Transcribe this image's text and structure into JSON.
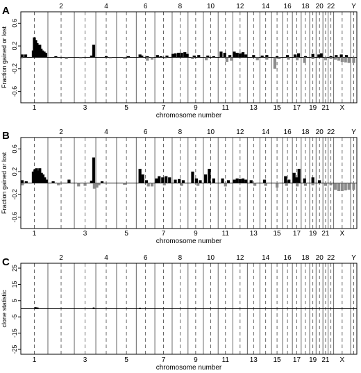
{
  "chart_data": [
    {
      "type": "bar",
      "panel_label": "A",
      "ylabel": "Fraction gained or lost",
      "xlabel": "chromosome number",
      "ylim": [
        -0.8,
        0.8
      ],
      "yticks": [
        {
          "value": 0.6,
          "label": "0.6"
        },
        {
          "value": 0.2,
          "label": "0.2"
        },
        {
          "value": -0.2,
          "label": "-0.2"
        },
        {
          "value": -0.6,
          "label": "-0.6"
        }
      ],
      "chromosomes": [
        "1",
        "2",
        "3",
        "4",
        "5",
        "6",
        "7",
        "8",
        "9",
        "10",
        "11",
        "12",
        "13",
        "14",
        "15",
        "16",
        "17",
        "18",
        "19",
        "20",
        "21",
        "22",
        "X",
        "Y"
      ],
      "gain_color": "#000000",
      "loss_color": "#8c8c8c",
      "gains": [
        {
          "chrom": 1,
          "pos": 0.05,
          "value": 0.05
        },
        {
          "chrom": 1,
          "pos": 0.18,
          "value": 0.05
        },
        {
          "chrom": 1,
          "pos": 0.46,
          "value": 0.12
        },
        {
          "chrom": 1,
          "pos": 0.5,
          "value": 0.35
        },
        {
          "chrom": 1,
          "pos": 0.55,
          "value": 0.3
        },
        {
          "chrom": 1,
          "pos": 0.6,
          "value": 0.25
        },
        {
          "chrom": 1,
          "pos": 0.65,
          "value": 0.18
        },
        {
          "chrom": 1,
          "pos": 0.7,
          "value": 0.22
        },
        {
          "chrom": 1,
          "pos": 0.75,
          "value": 0.15
        },
        {
          "chrom": 1,
          "pos": 0.8,
          "value": 0.12
        },
        {
          "chrom": 1,
          "pos": 0.86,
          "value": 0.1
        },
        {
          "chrom": 1,
          "pos": 0.92,
          "value": 0.08
        },
        {
          "chrom": 2,
          "pos": 0.3,
          "value": 0.02
        },
        {
          "chrom": 3,
          "pos": 0.8,
          "value": 0.03
        },
        {
          "chrom": 3,
          "pos": 0.9,
          "value": 0.22
        },
        {
          "chrom": 4,
          "pos": 0.5,
          "value": 0.02
        },
        {
          "chrom": 5,
          "pos": 0.6,
          "value": 0.02
        },
        {
          "chrom": 6,
          "pos": 0.2,
          "value": 0.05
        },
        {
          "chrom": 6,
          "pos": 0.3,
          "value": 0.03
        },
        {
          "chrom": 6,
          "pos": 0.6,
          "value": 0.02
        },
        {
          "chrom": 7,
          "pos": 0.15,
          "value": 0.04
        },
        {
          "chrom": 7,
          "pos": 0.35,
          "value": 0.02
        },
        {
          "chrom": 7,
          "pos": 0.7,
          "value": 0.03
        },
        {
          "chrom": 8,
          "pos": 0.05,
          "value": 0.06
        },
        {
          "chrom": 8,
          "pos": 0.2,
          "value": 0.07
        },
        {
          "chrom": 8,
          "pos": 0.4,
          "value": 0.08
        },
        {
          "chrom": 8,
          "pos": 0.6,
          "value": 0.08
        },
        {
          "chrom": 8,
          "pos": 0.8,
          "value": 0.09
        },
        {
          "chrom": 8,
          "pos": 0.95,
          "value": 0.06
        },
        {
          "chrom": 9,
          "pos": 0.4,
          "value": 0.03
        },
        {
          "chrom": 9,
          "pos": 0.7,
          "value": 0.04
        },
        {
          "chrom": 10,
          "pos": 0.3,
          "value": 0.03
        },
        {
          "chrom": 10,
          "pos": 0.7,
          "value": 0.02
        },
        {
          "chrom": 11,
          "pos": 0.2,
          "value": 0.1
        },
        {
          "chrom": 11,
          "pos": 0.45,
          "value": 0.08
        },
        {
          "chrom": 11,
          "pos": 0.8,
          "value": 0.04
        },
        {
          "chrom": 12,
          "pos": 0.1,
          "value": 0.1
        },
        {
          "chrom": 12,
          "pos": 0.3,
          "value": 0.08
        },
        {
          "chrom": 12,
          "pos": 0.5,
          "value": 0.07
        },
        {
          "chrom": 12,
          "pos": 0.7,
          "value": 0.09
        },
        {
          "chrom": 12,
          "pos": 0.9,
          "value": 0.05
        },
        {
          "chrom": 13,
          "pos": 0.5,
          "value": 0.04
        },
        {
          "chrom": 14,
          "pos": 0.2,
          "value": 0.03
        },
        {
          "chrom": 14,
          "pos": 0.6,
          "value": 0.04
        },
        {
          "chrom": 15,
          "pos": 0.5,
          "value": 0.02
        },
        {
          "chrom": 16,
          "pos": 0.5,
          "value": 0.04
        },
        {
          "chrom": 17,
          "pos": 0.3,
          "value": 0.05
        },
        {
          "chrom": 17,
          "pos": 0.7,
          "value": 0.07
        },
        {
          "chrom": 18,
          "pos": 0.5,
          "value": 0.02
        },
        {
          "chrom": 19,
          "pos": 0.5,
          "value": 0.06
        },
        {
          "chrom": 20,
          "pos": 0.4,
          "value": 0.05
        },
        {
          "chrom": 20,
          "pos": 0.75,
          "value": 0.07
        },
        {
          "chrom": 22,
          "pos": 0.5,
          "value": 0.02
        },
        {
          "chrom": 23,
          "pos": 0.15,
          "value": 0.04
        },
        {
          "chrom": 23,
          "pos": 0.45,
          "value": 0.05
        },
        {
          "chrom": 23,
          "pos": 0.75,
          "value": 0.04
        }
      ],
      "losses": [
        {
          "chrom": 1,
          "pos": 0.03,
          "value": -0.02
        },
        {
          "chrom": 2,
          "pos": 0.7,
          "value": -0.03
        },
        {
          "chrom": 3,
          "pos": 0.3,
          "value": -0.02
        },
        {
          "chrom": 4,
          "pos": 0.7,
          "value": -0.02
        },
        {
          "chrom": 5,
          "pos": 0.4,
          "value": -0.03
        },
        {
          "chrom": 6,
          "pos": 0.6,
          "value": -0.06
        },
        {
          "chrom": 6,
          "pos": 0.85,
          "value": -0.04
        },
        {
          "chrom": 7,
          "pos": 0.6,
          "value": -0.02
        },
        {
          "chrom": 9,
          "pos": 0.3,
          "value": -0.03
        },
        {
          "chrom": 10,
          "pos": 0.2,
          "value": -0.05
        },
        {
          "chrom": 11,
          "pos": 0.6,
          "value": -0.08
        },
        {
          "chrom": 11,
          "pos": 0.9,
          "value": -0.06
        },
        {
          "chrom": 13,
          "pos": 0.8,
          "value": -0.05
        },
        {
          "chrom": 14,
          "pos": 0.6,
          "value": -0.04
        },
        {
          "chrom": 15,
          "pos": 0.3,
          "value": -0.2
        },
        {
          "chrom": 15,
          "pos": 0.7,
          "value": -0.03
        },
        {
          "chrom": 16,
          "pos": 0.6,
          "value": -0.04
        },
        {
          "chrom": 17,
          "pos": 0.55,
          "value": -0.05
        },
        {
          "chrom": 18,
          "pos": 0.4,
          "value": -0.1
        },
        {
          "chrom": 19,
          "pos": 0.5,
          "value": -0.03
        },
        {
          "chrom": 21,
          "pos": 0.5,
          "value": -0.05
        },
        {
          "chrom": 22,
          "pos": 0.5,
          "value": -0.03
        },
        {
          "chrom": 23,
          "pos": 0.1,
          "value": -0.04
        },
        {
          "chrom": 23,
          "pos": 0.3,
          "value": -0.06
        },
        {
          "chrom": 23,
          "pos": 0.5,
          "value": -0.08
        },
        {
          "chrom": 23,
          "pos": 0.7,
          "value": -0.09
        },
        {
          "chrom": 23,
          "pos": 0.9,
          "value": -0.1
        },
        {
          "chrom": 24,
          "pos": 0.5,
          "value": -0.1
        }
      ]
    },
    {
      "type": "bar",
      "panel_label": "B",
      "ylabel": "Fraction gained or lost",
      "xlabel": "chromosome number",
      "ylim": [
        -0.8,
        0.8
      ],
      "yticks": [
        {
          "value": 0.6,
          "label": "0.6"
        },
        {
          "value": 0.2,
          "label": "0.2"
        },
        {
          "value": -0.2,
          "label": "-0.2"
        },
        {
          "value": -0.6,
          "label": "-0.6"
        }
      ],
      "chromosomes": [
        "1",
        "2",
        "3",
        "4",
        "5",
        "6",
        "7",
        "8",
        "9",
        "10",
        "11",
        "12",
        "13",
        "14",
        "15",
        "16",
        "17",
        "18",
        "19",
        "20",
        "21",
        "22",
        "X",
        "Y"
      ],
      "gain_color": "#000000",
      "loss_color": "#8c8c8c",
      "gains": [
        {
          "chrom": 1,
          "pos": 0.05,
          "value": 0.05
        },
        {
          "chrom": 1,
          "pos": 0.2,
          "value": 0.03
        },
        {
          "chrom": 1,
          "pos": 0.46,
          "value": 0.2
        },
        {
          "chrom": 1,
          "pos": 0.52,
          "value": 0.24
        },
        {
          "chrom": 1,
          "pos": 0.58,
          "value": 0.26
        },
        {
          "chrom": 1,
          "pos": 0.64,
          "value": 0.22
        },
        {
          "chrom": 1,
          "pos": 0.7,
          "value": 0.26
        },
        {
          "chrom": 1,
          "pos": 0.76,
          "value": 0.18
        },
        {
          "chrom": 1,
          "pos": 0.82,
          "value": 0.15
        },
        {
          "chrom": 1,
          "pos": 0.88,
          "value": 0.1
        },
        {
          "chrom": 1,
          "pos": 0.94,
          "value": 0.06
        },
        {
          "chrom": 2,
          "pos": 0.2,
          "value": 0.03
        },
        {
          "chrom": 2,
          "pos": 0.8,
          "value": 0.06
        },
        {
          "chrom": 3,
          "pos": 0.8,
          "value": 0.04
        },
        {
          "chrom": 3,
          "pos": 0.9,
          "value": 0.45
        },
        {
          "chrom": 4,
          "pos": 0.3,
          "value": 0.03
        },
        {
          "chrom": 6,
          "pos": 0.2,
          "value": 0.25
        },
        {
          "chrom": 6,
          "pos": 0.35,
          "value": 0.15
        },
        {
          "chrom": 6,
          "pos": 0.55,
          "value": 0.05
        },
        {
          "chrom": 7,
          "pos": 0.1,
          "value": 0.08
        },
        {
          "chrom": 7,
          "pos": 0.25,
          "value": 0.12
        },
        {
          "chrom": 7,
          "pos": 0.45,
          "value": 0.1
        },
        {
          "chrom": 7,
          "pos": 0.65,
          "value": 0.12
        },
        {
          "chrom": 7,
          "pos": 0.85,
          "value": 0.1
        },
        {
          "chrom": 8,
          "pos": 0.2,
          "value": 0.06
        },
        {
          "chrom": 8,
          "pos": 0.45,
          "value": 0.07
        },
        {
          "chrom": 8,
          "pos": 0.7,
          "value": 0.05
        },
        {
          "chrom": 9,
          "pos": 0.3,
          "value": 0.2
        },
        {
          "chrom": 9,
          "pos": 0.55,
          "value": 0.08
        },
        {
          "chrom": 9,
          "pos": 0.8,
          "value": 0.05
        },
        {
          "chrom": 10,
          "pos": 0.15,
          "value": 0.15
        },
        {
          "chrom": 10,
          "pos": 0.4,
          "value": 0.25
        },
        {
          "chrom": 10,
          "pos": 0.7,
          "value": 0.08
        },
        {
          "chrom": 11,
          "pos": 0.3,
          "value": 0.08
        },
        {
          "chrom": 11,
          "pos": 0.7,
          "value": 0.05
        },
        {
          "chrom": 12,
          "pos": 0.1,
          "value": 0.06
        },
        {
          "chrom": 12,
          "pos": 0.3,
          "value": 0.08
        },
        {
          "chrom": 12,
          "pos": 0.5,
          "value": 0.07
        },
        {
          "chrom": 12,
          "pos": 0.7,
          "value": 0.08
        },
        {
          "chrom": 12,
          "pos": 0.9,
          "value": 0.06
        },
        {
          "chrom": 13,
          "pos": 0.3,
          "value": 0.05
        },
        {
          "chrom": 14,
          "pos": 0.4,
          "value": 0.06
        },
        {
          "chrom": 16,
          "pos": 0.3,
          "value": 0.12
        },
        {
          "chrom": 16,
          "pos": 0.65,
          "value": 0.06
        },
        {
          "chrom": 17,
          "pos": 0.2,
          "value": 0.18
        },
        {
          "chrom": 17,
          "pos": 0.5,
          "value": 0.1
        },
        {
          "chrom": 17,
          "pos": 0.75,
          "value": 0.25
        },
        {
          "chrom": 18,
          "pos": 0.4,
          "value": 0.08
        },
        {
          "chrom": 19,
          "pos": 0.5,
          "value": 0.1
        },
        {
          "chrom": 20,
          "pos": 0.5,
          "value": 0.05
        }
      ],
      "losses": [
        {
          "chrom": 1,
          "pos": 0.06,
          "value": -0.04
        },
        {
          "chrom": 2,
          "pos": 0.4,
          "value": -0.04
        },
        {
          "chrom": 3,
          "pos": 0.2,
          "value": -0.06
        },
        {
          "chrom": 3,
          "pos": 0.5,
          "value": -0.05
        },
        {
          "chrom": 3,
          "pos": 0.93,
          "value": -0.1
        },
        {
          "chrom": 4,
          "pos": 0.05,
          "value": -0.08
        },
        {
          "chrom": 4,
          "pos": 0.15,
          "value": -0.04
        },
        {
          "chrom": 5,
          "pos": 0.4,
          "value": -0.03
        },
        {
          "chrom": 6,
          "pos": 0.65,
          "value": -0.06
        },
        {
          "chrom": 6,
          "pos": 0.85,
          "value": -0.06
        },
        {
          "chrom": 7,
          "pos": 0.55,
          "value": -0.04
        },
        {
          "chrom": 8,
          "pos": 0.6,
          "value": -0.05
        },
        {
          "chrom": 9,
          "pos": 0.65,
          "value": -0.05
        },
        {
          "chrom": 11,
          "pos": 0.5,
          "value": -0.06
        },
        {
          "chrom": 13,
          "pos": 0.6,
          "value": -0.05
        },
        {
          "chrom": 14,
          "pos": 0.5,
          "value": -0.05
        },
        {
          "chrom": 15,
          "pos": 0.5,
          "value": -0.08
        },
        {
          "chrom": 16,
          "pos": 0.4,
          "value": -0.05
        },
        {
          "chrom": 17,
          "pos": 0.55,
          "value": -0.06
        },
        {
          "chrom": 18,
          "pos": 0.5,
          "value": -0.05
        },
        {
          "chrom": 19,
          "pos": 0.5,
          "value": -0.04
        },
        {
          "chrom": 21,
          "pos": 0.5,
          "value": -0.05
        },
        {
          "chrom": 22,
          "pos": 0.5,
          "value": -0.04
        },
        {
          "chrom": 23,
          "pos": 0.1,
          "value": -0.12
        },
        {
          "chrom": 23,
          "pos": 0.3,
          "value": -0.14
        },
        {
          "chrom": 23,
          "pos": 0.5,
          "value": -0.14
        },
        {
          "chrom": 23,
          "pos": 0.7,
          "value": -0.13
        },
        {
          "chrom": 23,
          "pos": 0.9,
          "value": -0.12
        },
        {
          "chrom": 24,
          "pos": 0.5,
          "value": -0.12
        }
      ]
    },
    {
      "type": "bar",
      "panel_label": "C",
      "ylabel": "clone statistic",
      "xlabel": "chromosome number",
      "ylim": [
        -28,
        28
      ],
      "yticks": [
        {
          "value": 25,
          "label": "25"
        },
        {
          "value": 15,
          "label": "15"
        },
        {
          "value": 5,
          "label": "5"
        },
        {
          "value": -5,
          "label": "-5"
        },
        {
          "value": -15,
          "label": "-15"
        },
        {
          "value": -25,
          "label": "-25"
        }
      ],
      "chromosomes": [
        "1",
        "2",
        "3",
        "4",
        "5",
        "6",
        "7",
        "8",
        "9",
        "10",
        "11",
        "12",
        "13",
        "14",
        "15",
        "16",
        "17",
        "18",
        "19",
        "20",
        "21",
        "22",
        "X",
        "Y"
      ],
      "gain_color": "#000000",
      "loss_color": "#8c8c8c",
      "gains": [
        {
          "chrom": 1,
          "pos": 0.55,
          "value": 1.0
        },
        {
          "chrom": 1,
          "pos": 0.62,
          "value": 0.8
        },
        {
          "chrom": 3,
          "pos": 0.9,
          "value": 0.8
        },
        {
          "chrom": 6,
          "pos": 0.2,
          "value": 0.6
        }
      ],
      "losses": []
    }
  ],
  "labels": {
    "top_odd": [
      "2",
      "4",
      "6",
      "8",
      "10",
      "12",
      "14",
      "16",
      "18",
      "20",
      "22",
      "Y"
    ],
    "bottom_even": [
      "1",
      "3",
      "5",
      "7",
      "9",
      "11",
      "13",
      "15",
      "17",
      "19",
      "21",
      "X"
    ]
  }
}
